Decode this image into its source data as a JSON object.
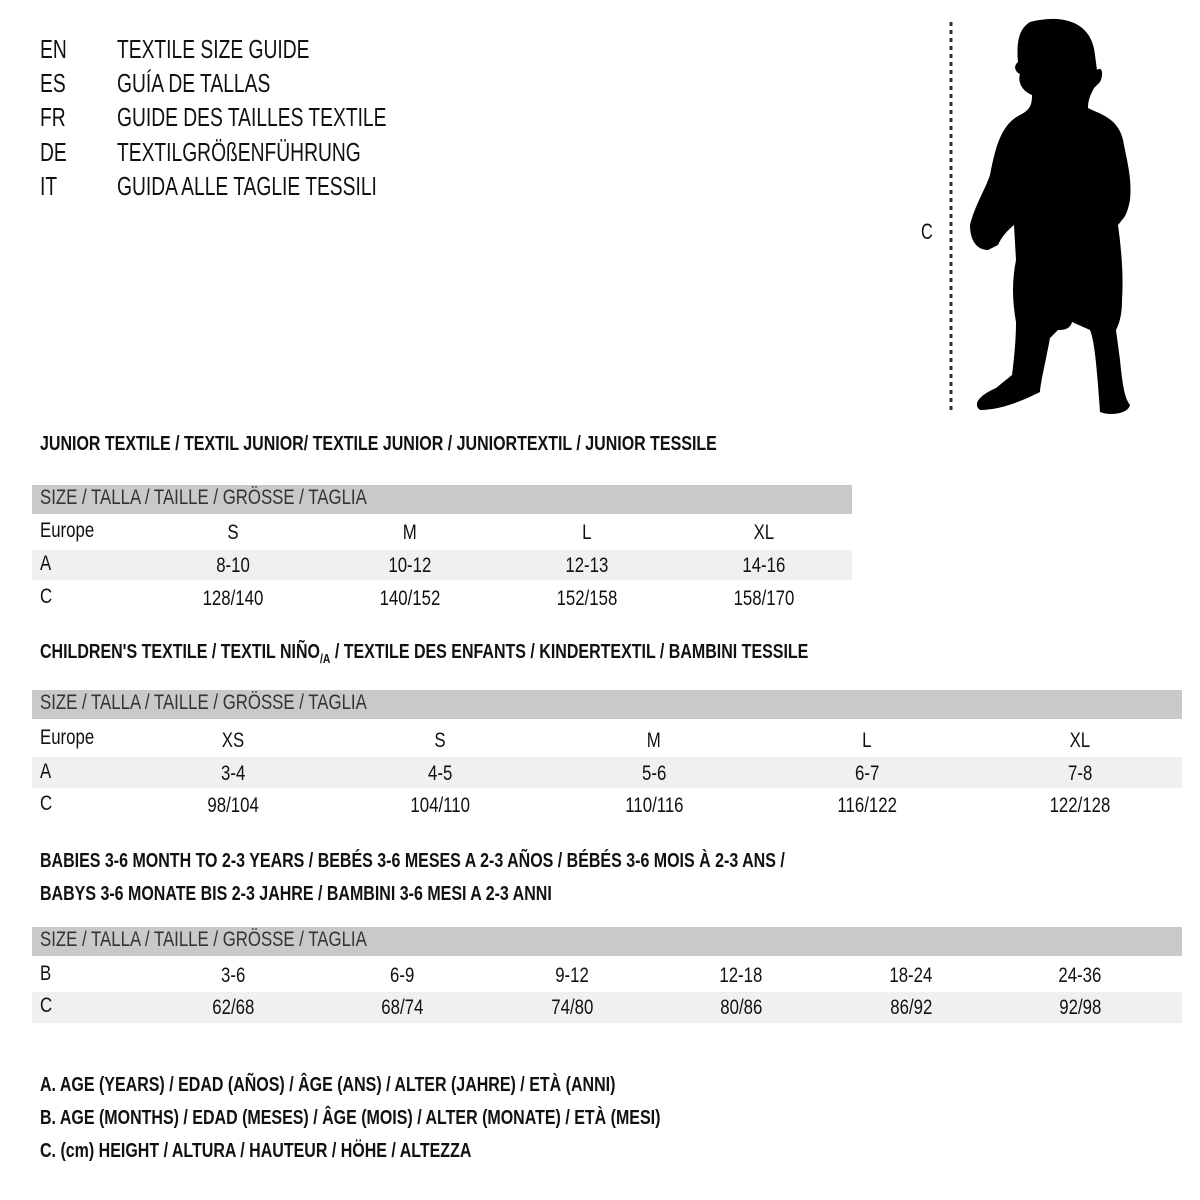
{
  "titles": [
    {
      "code": "EN",
      "text": "TEXTILE SIZE GUIDE"
    },
    {
      "code": "ES",
      "text": "GUÍA DE TALLAS"
    },
    {
      "code": "FR",
      "text": "GUIDE DES TAILLES TEXTILE"
    },
    {
      "code": "DE",
      "text": "TEXTILGRÖßENFÜHRUNG"
    },
    {
      "code": "IT",
      "text": "GUIDA ALLE TAGLIE TESSILI"
    }
  ],
  "figure": {
    "measure_label": "C",
    "icon": "child-silhouette-icon"
  },
  "size_header": "SIZE / TALLA / TAILLE / GRÖSSE / TAGLIA",
  "junior": {
    "heading": "JUNIOR TEXTILE / TEXTIL JUNIOR/ TEXTILE JUNIOR / JUNIORTEXTIL / JUNIOR TESSILE",
    "rows": [
      {
        "label": "Europe",
        "values": [
          "S",
          "M",
          "L",
          "XL"
        ]
      },
      {
        "label": "A",
        "values": [
          "8-10",
          "10-12",
          "12-13",
          "14-16"
        ]
      },
      {
        "label": "C",
        "values": [
          "128/140",
          "140/152",
          "152/158",
          "158/170"
        ]
      }
    ]
  },
  "children": {
    "heading_pre": "CHILDREN'S TEXTILE / TEXTIL NIÑO",
    "heading_sub": "/A",
    "heading_post": " / TEXTILE DES ENFANTS / KINDERTEXTIL / BAMBINI TESSILE",
    "rows": [
      {
        "label": "Europe",
        "values": [
          "XS",
          "S",
          "M",
          "L",
          "XL"
        ]
      },
      {
        "label": "A",
        "values": [
          "3-4",
          "4-5",
          "5-6",
          "6-7",
          "7-8"
        ]
      },
      {
        "label": "C",
        "values": [
          "98/104",
          "104/110",
          "110/116",
          "116/122",
          "122/128"
        ]
      }
    ]
  },
  "babies": {
    "heading_line1": "BABIES 3-6 MONTH TO 2-3 YEARS / BEBÉS 3-6 MESES A 2-3 AÑOS / BÉBÉS 3-6 MOIS À 2-3 ANS /",
    "heading_line2": "BABYS 3-6 MONATE BIS 2-3 JAHRE / BAMBINI 3-6 MESI A 2-3 ANNI",
    "rows": [
      {
        "label": "B",
        "values": [
          "3-6",
          "6-9",
          "9-12",
          "12-18",
          "18-24",
          "24-36"
        ]
      },
      {
        "label": "C",
        "values": [
          "62/68",
          "68/74",
          "74/80",
          "80/86",
          "86/92",
          "92/98"
        ]
      }
    ]
  },
  "legend": [
    "A. AGE (YEARS) / EDAD (AÑOS) / ÂGE (ANS) / ALTER (JAHRE) / ETÀ (ANNI)",
    "B. AGE (MONTHS) / EDAD (MESES) / ÂGE (MOIS) / ALTER (MONATE) / ETÀ (MESI)",
    "C. (cm) HEIGHT / ALTURA / HAUTEUR / HÖHE / ALTEZZA"
  ],
  "colors": {
    "header_bar": "#c9c9c9",
    "row_shade": "#f0f0f0",
    "text": "#111111"
  }
}
